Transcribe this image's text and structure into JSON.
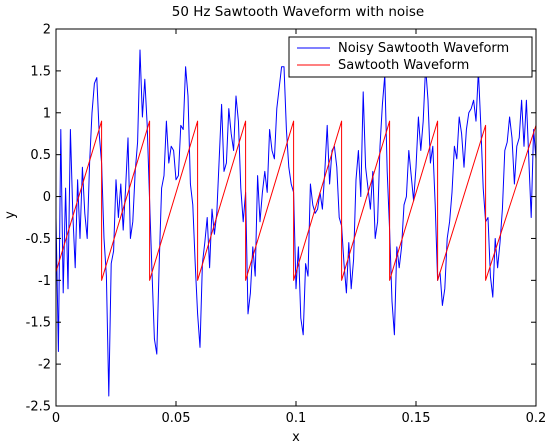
{
  "chart_data": {
    "type": "line",
    "title": "50 Hz Sawtooth Waveform with noise",
    "xlabel": "x",
    "ylabel": "y",
    "xlim": [
      0,
      0.2
    ],
    "ylim": [
      -2.5,
      2
    ],
    "x_ticks": [
      0,
      0.05,
      0.1,
      0.15,
      0.2
    ],
    "x_tick_labels": [
      "0",
      "0.05",
      "0.1",
      "0.15",
      "0.2"
    ],
    "y_ticks": [
      -2.5,
      -2,
      -1.5,
      -1,
      -0.5,
      0,
      0.5,
      1,
      1.5,
      2
    ],
    "y_tick_labels": [
      "-2.5",
      "-2",
      "-1.5",
      "-1",
      "-0.5",
      "0",
      "0.5",
      "1",
      "1.5",
      "2"
    ],
    "grid": false,
    "legend_position": "top-right",
    "series": [
      {
        "name": "Noisy Sawtooth Waveform",
        "color": "#0000ff",
        "x": [
          0,
          0.001,
          0.002,
          0.003,
          0.004,
          0.005,
          0.006,
          0.007,
          0.008,
          0.009,
          0.01,
          0.011,
          0.012,
          0.013,
          0.014,
          0.015,
          0.016,
          0.017,
          0.018,
          0.019,
          0.02,
          0.021,
          0.022,
          0.023,
          0.024,
          0.025,
          0.026,
          0.027,
          0.028,
          0.029,
          0.03,
          0.031,
          0.032,
          0.033,
          0.034,
          0.035,
          0.036,
          0.037,
          0.038,
          0.039,
          0.04,
          0.041,
          0.042,
          0.043,
          0.044,
          0.045,
          0.046,
          0.047,
          0.048,
          0.049,
          0.05,
          0.051,
          0.052,
          0.053,
          0.054,
          0.055,
          0.056,
          0.057,
          0.058,
          0.059,
          0.06,
          0.061,
          0.062,
          0.063,
          0.064,
          0.065,
          0.066,
          0.067,
          0.068,
          0.069,
          0.07,
          0.071,
          0.072,
          0.073,
          0.074,
          0.075,
          0.076,
          0.077,
          0.078,
          0.079,
          0.08,
          0.081,
          0.082,
          0.083,
          0.084,
          0.085,
          0.086,
          0.087,
          0.088,
          0.089,
          0.09,
          0.091,
          0.092,
          0.093,
          0.094,
          0.095,
          0.096,
          0.097,
          0.098,
          0.099,
          0.1,
          0.101,
          0.102,
          0.103,
          0.104,
          0.105,
          0.106,
          0.107,
          0.108,
          0.109,
          0.11,
          0.111,
          0.112,
          0.113,
          0.114,
          0.115,
          0.116,
          0.117,
          0.118,
          0.119,
          0.12,
          0.121,
          0.122,
          0.123,
          0.124,
          0.125,
          0.126,
          0.127,
          0.128,
          0.129,
          0.13,
          0.131,
          0.132,
          0.133,
          0.134,
          0.135,
          0.136,
          0.137,
          0.138,
          0.139,
          0.14,
          0.141,
          0.142,
          0.143,
          0.144,
          0.145,
          0.146,
          0.147,
          0.148,
          0.149,
          0.15,
          0.151,
          0.152,
          0.153,
          0.154,
          0.155,
          0.156,
          0.157,
          0.158,
          0.159,
          0.16,
          0.161,
          0.162,
          0.163,
          0.164,
          0.165,
          0.166,
          0.167,
          0.168,
          0.169,
          0.17,
          0.171,
          0.172,
          0.173,
          0.174,
          0.175,
          0.176,
          0.177,
          0.178,
          0.179,
          0.18,
          0.181,
          0.182,
          0.183,
          0.184,
          0.185,
          0.186,
          0.187,
          0.188,
          0.189,
          0.19,
          0.191,
          0.192,
          0.193,
          0.194,
          0.195,
          0.196,
          0.197,
          0.198,
          0.199,
          0.2
        ],
        "y": [
          -0.25,
          -1.85,
          0.8,
          -1.15,
          0.1,
          -1.1,
          0.8,
          -0.2,
          -0.85,
          0.2,
          -0.5,
          0.35,
          -0.2,
          -0.5,
          0.4,
          1.0,
          1.35,
          1.42,
          0.75,
          0.4,
          -0.5,
          -0.95,
          -2.38,
          -0.8,
          -0.65,
          0.2,
          -0.25,
          0.15,
          -0.4,
          0.1,
          0.7,
          -0.5,
          -0.3,
          0.3,
          0.65,
          1.75,
          0.95,
          1.4,
          0.85,
          -0.05,
          -0.9,
          -1.7,
          -1.88,
          -0.8,
          0.1,
          0.25,
          0.9,
          0.4,
          0.6,
          0.55,
          0.2,
          0.25,
          0.85,
          0.8,
          1.55,
          1.2,
          0.15,
          -0.1,
          -0.8,
          -1.4,
          -1.8,
          -0.8,
          -0.55,
          -0.25,
          -0.85,
          -0.15,
          -0.45,
          -0.2,
          0.45,
          1.1,
          0.3,
          0.4,
          1.05,
          0.75,
          0.55,
          1.2,
          0.9,
          0.1,
          -0.3,
          0.05,
          -1.4,
          -1.15,
          -0.6,
          -0.95,
          0.25,
          -0.3,
          0.05,
          0.3,
          0.05,
          0.8,
          0.55,
          0.45,
          1.05,
          1.3,
          1.55,
          1.55,
          0.8,
          0.35,
          0.15,
          0.05,
          -1.1,
          -0.6,
          -1.45,
          -1.65,
          -0.8,
          -0.95,
          0.15,
          -0.1,
          -0.2,
          -0.15,
          0.05,
          -0.15,
          0.3,
          0.85,
          0.15,
          0.55,
          0.6,
          0.35,
          -0.25,
          -0.35,
          -0.8,
          -1.15,
          -0.55,
          -1.1,
          -0.75,
          0.2,
          0.55,
          0.0,
          1.25,
          0.35,
          0.1,
          -0.15,
          0.3,
          -0.5,
          -0.3,
          0.6,
          1.1,
          1.45,
          0.3,
          -0.4,
          -1.25,
          -1.65,
          -0.6,
          -0.85,
          -0.6,
          -0.1,
          0.0,
          0.55,
          0.25,
          -0.05,
          0.35,
          0.95,
          0.55,
          0.9,
          1.55,
          1.15,
          0.4,
          0.6,
          -0.1,
          -1.0,
          -0.9,
          -1.3,
          -1.1,
          -0.5,
          -0.3,
          0.05,
          0.6,
          0.45,
          0.95,
          0.75,
          0.35,
          0.8,
          1.0,
          1.05,
          1.15,
          0.9,
          1.5,
          0.85,
          0.1,
          -0.3,
          -0.25,
          -0.95,
          -1.2,
          -0.5,
          -0.85,
          -0.55,
          -0.15,
          0.55,
          0.65,
          0.95,
          0.7,
          0.15,
          0.6,
          0.7,
          1.15,
          0.6,
          1.15,
          0.45,
          -0.25,
          0.8,
          0.45
        ]
      },
      {
        "name": "Sawtooth Waveform",
        "color": "#ff0000",
        "x": [
          0,
          0.019,
          0.019,
          0.039,
          0.039,
          0.059,
          0.059,
          0.079,
          0.079,
          0.099,
          0.099,
          0.119,
          0.119,
          0.139,
          0.139,
          0.159,
          0.159,
          0.179,
          0.179,
          0.2
        ],
        "y": [
          -0.9,
          0.9,
          -1.0,
          0.9,
          -1.0,
          0.9,
          -1.0,
          0.9,
          -1.0,
          0.9,
          -1.0,
          0.9,
          -1.0,
          0.9,
          -1.0,
          0.9,
          -1.0,
          0.85,
          -1.0,
          0.85
        ]
      }
    ]
  }
}
